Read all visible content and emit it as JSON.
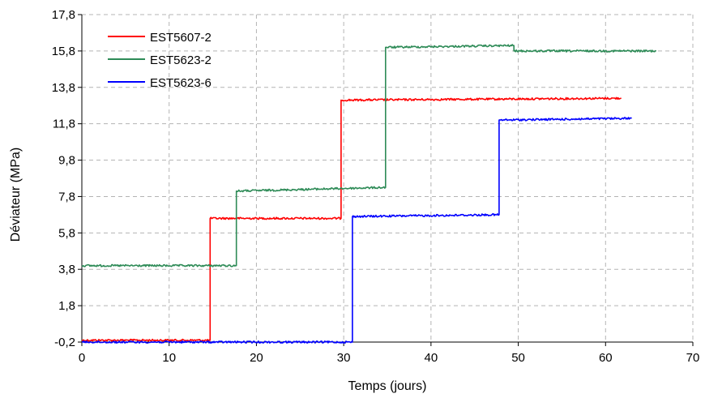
{
  "chart_data": {
    "type": "line",
    "title": "",
    "xlabel": "Temps (jours)",
    "ylabel": "Déviateur (MPa)",
    "xlim": [
      0,
      70
    ],
    "ylim": [
      -0.2,
      17.8
    ],
    "x_ticks": [
      0,
      10,
      20,
      30,
      40,
      50,
      60,
      70
    ],
    "y_ticks": [
      -0.2,
      1.8,
      3.8,
      5.8,
      7.8,
      9.8,
      11.8,
      13.8,
      15.8,
      17.8
    ],
    "x_tick_labels": [
      "0",
      "10",
      "20",
      "30",
      "40",
      "50",
      "60",
      "70"
    ],
    "y_tick_labels": [
      "-0,2",
      "1,8",
      "3,8",
      "5,8",
      "7,8",
      "9,8",
      "11,8",
      "13,8",
      "15,8",
      "17,8"
    ],
    "grid": true,
    "legend_position": "top-left",
    "series": [
      {
        "name": "EST5607-2",
        "color": "#ff0000",
        "x": [
          0,
          14.7,
          14.7,
          29.7,
          29.7,
          61.8
        ],
        "y": [
          -0.1,
          -0.1,
          6.6,
          6.6,
          13.1,
          13.2
        ]
      },
      {
        "name": "EST5623-2",
        "color": "#2e8b57",
        "x": [
          0,
          17.7,
          17.7,
          34.8,
          34.8,
          49.5,
          49.5,
          65.8
        ],
        "y": [
          4.0,
          4.0,
          8.1,
          8.3,
          16.0,
          16.1,
          15.8,
          15.8
        ]
      },
      {
        "name": "EST5623-6",
        "color": "#0000ff",
        "x": [
          0,
          31.0,
          31.0,
          47.8,
          47.8,
          63.0
        ],
        "y": [
          -0.2,
          -0.2,
          6.7,
          6.8,
          12.0,
          12.1
        ]
      }
    ]
  }
}
